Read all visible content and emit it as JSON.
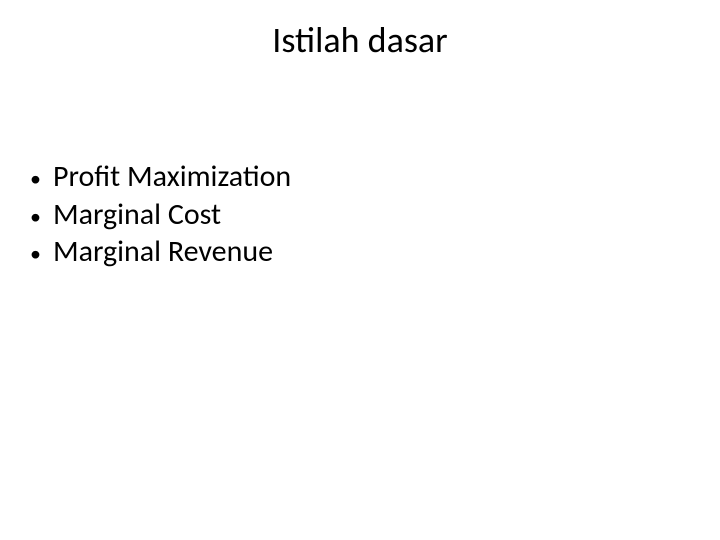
{
  "slide": {
    "title": "Istilah dasar",
    "title_fontsize": 36,
    "title_color": "#000000",
    "background_color": "#ffffff",
    "bullets": [
      {
        "text": "Profit Maximization"
      },
      {
        "text": "Marginal Cost"
      },
      {
        "text": "Marginal Revenue"
      }
    ],
    "bullet_fontsize": 30,
    "bullet_color": "#000000",
    "bullet_marker": "•"
  }
}
